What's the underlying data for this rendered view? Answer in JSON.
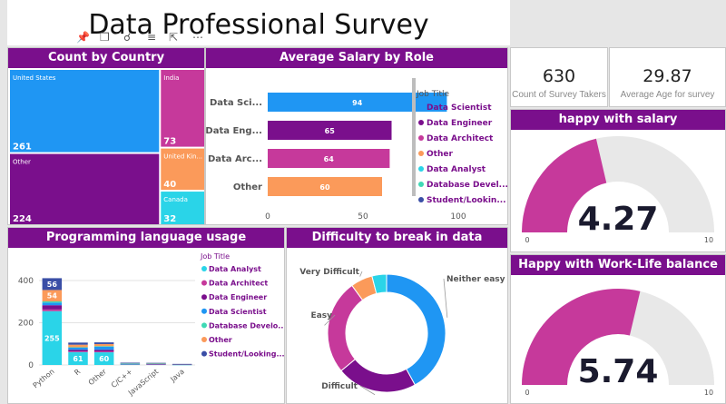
{
  "title": "Data Professional Survey",
  "toolbar": [
    "pin-icon",
    "copy-icon",
    "bell-icon",
    "filter-icon",
    "expand-icon",
    "more-icon"
  ],
  "kpis": [
    {
      "value": "630",
      "label": "Count of Survey Takers"
    },
    {
      "value": "29.87",
      "label": "Average Age for survey"
    }
  ],
  "colors": {
    "header": "#7a0f8c",
    "Data Scientist": "#1f96f3",
    "Data Engineer": "#7a0f8c",
    "Data Architect": "#c6399b",
    "Other": "#fb9a5a",
    "Data Analyst": "#2ad4e8",
    "Database Developer": "#3fd9b5",
    "Student/Looking": "#3a4ea6"
  },
  "panels": {
    "country": "Count by Country",
    "salary": "Average Salary by Role",
    "language": "Programming language usage",
    "difficulty": "Difficulty to break in data",
    "happy_salary": "happy with salary",
    "happy_wlb": "Happy with Work-Life balance"
  },
  "chart_data": [
    {
      "type": "treemap",
      "title": "Count by Country",
      "items": [
        {
          "label": "United States",
          "value": 261
        },
        {
          "label": "Other",
          "value": 224
        },
        {
          "label": "India",
          "value": 73
        },
        {
          "label": "United Kin...",
          "value": 40
        },
        {
          "label": "Canada",
          "value": 32
        }
      ]
    },
    {
      "type": "bar",
      "orientation": "horizontal",
      "title": "Average Salary by Role",
      "categories": [
        "Data Sci...",
        "Data Eng...",
        "Data Arc...",
        "Other"
      ],
      "values": [
        94,
        65,
        64,
        60
      ],
      "xlim": [
        0,
        100
      ],
      "xticks": [
        0,
        50,
        100
      ],
      "legend_title": "Job Title",
      "legend": [
        "Data Scientist",
        "Data Engineer",
        "Data Architect",
        "Other",
        "Data Analyst",
        "Database Devel...",
        "Student/Lookin..."
      ]
    },
    {
      "type": "bar",
      "stacked": true,
      "title": "Programming language usage",
      "categories": [
        "Python",
        "R",
        "Other",
        "C/C++",
        "JavaScript",
        "Java"
      ],
      "series": [
        {
          "name": "Data Analyst",
          "values": [
            255,
            61,
            60,
            4,
            2,
            1
          ]
        },
        {
          "name": "Data Architect",
          "values": [
            8,
            3,
            4,
            1,
            1,
            0
          ]
        },
        {
          "name": "Data Engineer",
          "values": [
            20,
            8,
            8,
            1,
            2,
            1
          ]
        },
        {
          "name": "Data Scientist",
          "values": [
            12,
            10,
            14,
            1,
            1,
            1
          ]
        },
        {
          "name": "Database Developer",
          "values": [
            6,
            2,
            3,
            1,
            1,
            0
          ]
        },
        {
          "name": "Other",
          "values": [
            54,
            12,
            10,
            2,
            2,
            1
          ]
        },
        {
          "name": "Student/Looking",
          "values": [
            56,
            10,
            8,
            1,
            1,
            1
          ]
        }
      ],
      "bar_labels": [
        {
          "category": "Python",
          "series": "Data Analyst",
          "label": "255"
        },
        {
          "category": "Python",
          "series": "Other",
          "label": "54"
        },
        {
          "category": "Python",
          "series": "Student/Looking",
          "label": "56"
        },
        {
          "category": "R",
          "series": "Data Analyst",
          "label": "61"
        },
        {
          "category": "Other",
          "series": "Data Analyst",
          "label": "60"
        }
      ],
      "ylim": [
        0,
        430
      ],
      "yticks": [
        0,
        200,
        400
      ],
      "legend_title": "Job Title",
      "legend": [
        "Data Analyst",
        "Data Architect",
        "Data Engineer",
        "Data Scientist",
        "Database Develo...",
        "Other",
        "Student/Looking..."
      ]
    },
    {
      "type": "pie",
      "donut": true,
      "title": "Difficulty to break in data",
      "slices": [
        {
          "label": "Neither easy n...",
          "value": 42,
          "color": "#1f96f3"
        },
        {
          "label": "Difficult",
          "value": 22,
          "color": "#7a0f8c"
        },
        {
          "label": "Easy",
          "value": 26,
          "color": "#c6399b"
        },
        {
          "label": "Very Difficult",
          "value": 6,
          "color": "#fb9a5a"
        },
        {
          "label": "",
          "value": 4,
          "color": "#2ad4e8"
        }
      ]
    },
    {
      "type": "gauge",
      "title": "happy with salary",
      "value": 4.27,
      "value_text": "4.27",
      "min": 0,
      "max": 10,
      "min_label": "0",
      "max_label": "10"
    },
    {
      "type": "gauge",
      "title": "Happy with Work-Life balance",
      "value": 5.74,
      "value_text": "5.74",
      "min": 0,
      "max": 10,
      "min_label": "0",
      "max_label": "10"
    }
  ]
}
